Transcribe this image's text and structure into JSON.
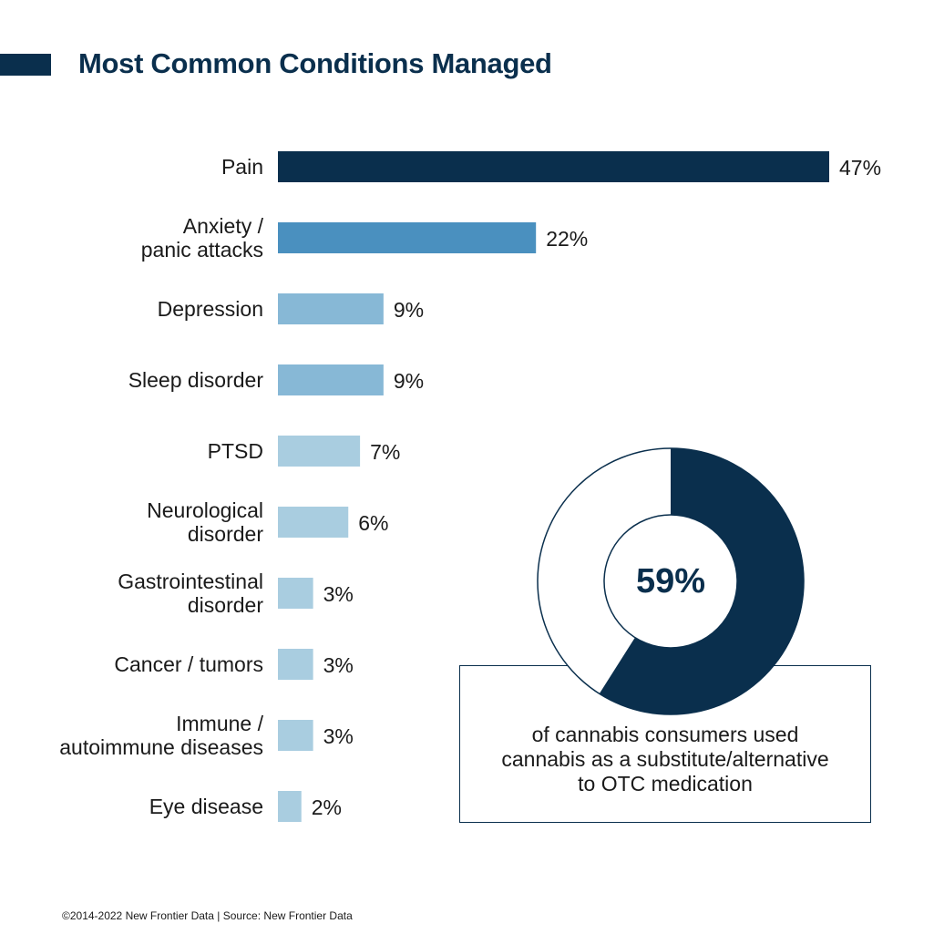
{
  "title": "Most Common Conditions Managed",
  "colors": {
    "dark_navy": "#0a2f4d",
    "mid_blue": "#4a90bf",
    "light_blue": "#87b8d6",
    "pale_blue": "#a9cde0",
    "text": "#1a1a1a"
  },
  "chart_data": [
    {
      "type": "bar",
      "orientation": "horizontal",
      "title": "Most Common Conditions Managed",
      "categories": [
        [
          "Pain"
        ],
        [
          "Anxiety /",
          "panic attacks"
        ],
        [
          "Depression"
        ],
        [
          "Sleep disorder"
        ],
        [
          "PTSD"
        ],
        [
          "Neurological",
          "disorder"
        ],
        [
          "Gastrointestinal",
          "disorder"
        ],
        [
          "Cancer / tumors"
        ],
        [
          "Immune /",
          "autoimmune diseases"
        ],
        [
          "Eye disease"
        ]
      ],
      "values": [
        47,
        22,
        9,
        9,
        7,
        6,
        3,
        3,
        3,
        2
      ],
      "value_labels": [
        "47%",
        "22%",
        "9%",
        "9%",
        "7%",
        "6%",
        "3%",
        "3%",
        "3%",
        "2%"
      ],
      "bar_colors": [
        "#0a2f4d",
        "#4a90bf",
        "#87b8d6",
        "#87b8d6",
        "#a9cde0",
        "#a9cde0",
        "#a9cde0",
        "#a9cde0",
        "#a9cde0",
        "#a9cde0"
      ],
      "xlim": [
        0,
        47
      ],
      "grid": false
    },
    {
      "type": "pie",
      "style": "donut",
      "values": [
        59,
        41
      ],
      "colors": [
        "#0a2f4d",
        "#ffffff"
      ],
      "center_label": "59%",
      "caption": [
        "of cannabis consumers used",
        "cannabis as a substitute/alternative",
        "to OTC medication"
      ]
    }
  ],
  "footer": "©2014-2022  New Frontier Data | Source: New Frontier Data"
}
